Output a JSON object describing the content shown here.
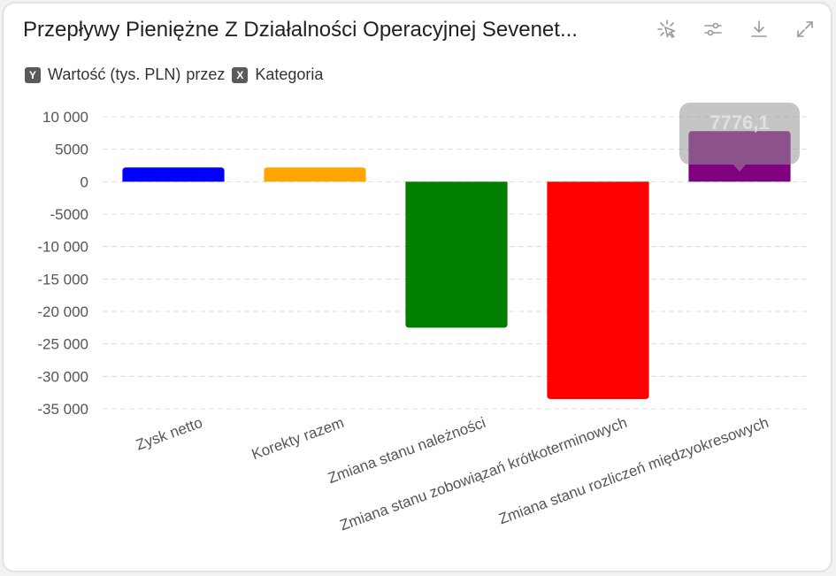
{
  "header": {
    "title": "Przepływy Pieniężne Z Działalności Operacyjnej Sevenet..."
  },
  "toolbar": {
    "icons": [
      "magic-wand-icon",
      "sliders-icon",
      "download-icon",
      "expand-icon"
    ]
  },
  "legend": {
    "y_badge": "Y",
    "y_label": "Wartość (tys. PLN)",
    "by_text": "przez",
    "x_badge": "X",
    "x_label": "Kategoria"
  },
  "chart_data": {
    "type": "bar",
    "categories": [
      "Zysk netto",
      "Korekty razem",
      "Zmiana stanu należności",
      "Zmiana stanu zobowiązań krótkoterminowych",
      "Zmiana stanu rozliczeń międzyokresowych"
    ],
    "values": [
      2200,
      2200,
      -22500,
      -33500,
      7776.1
    ],
    "colors": [
      "#0000ff",
      "#ffa500",
      "#008000",
      "#ff0000",
      "#800080"
    ],
    "ylim": [
      -35000,
      10000
    ],
    "yticks": [
      10000,
      5000,
      0,
      -5000,
      -10000,
      -15000,
      -20000,
      -25000,
      -30000,
      -35000
    ],
    "ytick_labels": [
      "10 000",
      "5000",
      "0",
      "-5000",
      "-10 000",
      "-15 000",
      "-20 000",
      "-25 000",
      "-30 000",
      "-35 000"
    ],
    "grid": true,
    "tooltip": {
      "index": 4,
      "text": "7776,1"
    }
  }
}
